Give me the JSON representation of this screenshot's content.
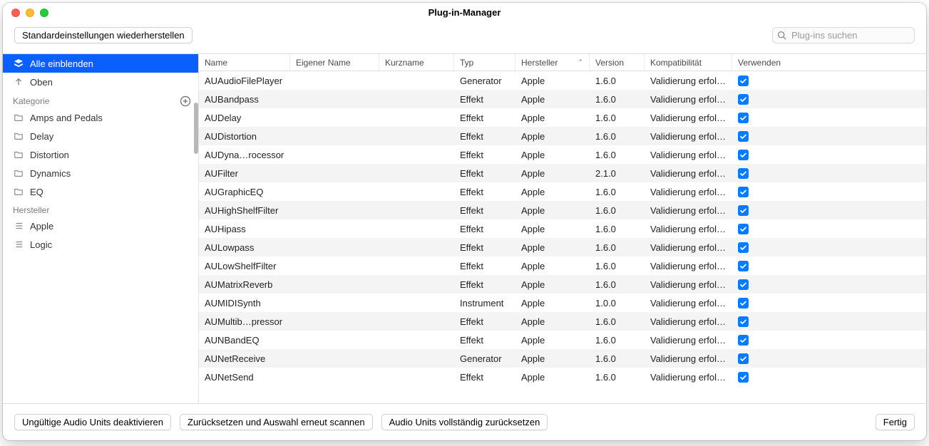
{
  "window": {
    "title": "Plug-in-Manager"
  },
  "toolbar": {
    "restore_defaults": "Standardeinstellungen wiederherstellen",
    "search_placeholder": "Plug-ins suchen"
  },
  "sidebar": {
    "show_all": "Alle einblenden",
    "up": "Oben",
    "category_header": "Kategorie",
    "categories": [
      {
        "label": "Amps and Pedals"
      },
      {
        "label": "Delay"
      },
      {
        "label": "Distortion"
      },
      {
        "label": "Dynamics"
      },
      {
        "label": "EQ"
      }
    ],
    "manufacturer_header": "Hersteller",
    "manufacturers": [
      {
        "label": "Apple"
      },
      {
        "label": "Logic"
      }
    ]
  },
  "table": {
    "columns": {
      "name": "Name",
      "own_name": "Eigener Name",
      "short_name": "Kurzname",
      "type": "Typ",
      "manufacturer": "Hersteller",
      "version": "Version",
      "compatibility": "Kompatibilität",
      "use": "Verwenden"
    },
    "rows": [
      {
        "name": "AUAudioFilePlayer",
        "own": "",
        "short": "",
        "type": "Generator",
        "mfr": "Apple",
        "ver": "1.6.0",
        "comp": "Validierung erfol…",
        "use": true
      },
      {
        "name": "AUBandpass",
        "own": "",
        "short": "",
        "type": "Effekt",
        "mfr": "Apple",
        "ver": "1.6.0",
        "comp": "Validierung erfol…",
        "use": true
      },
      {
        "name": "AUDelay",
        "own": "",
        "short": "",
        "type": "Effekt",
        "mfr": "Apple",
        "ver": "1.6.0",
        "comp": "Validierung erfol…",
        "use": true
      },
      {
        "name": "AUDistortion",
        "own": "",
        "short": "",
        "type": "Effekt",
        "mfr": "Apple",
        "ver": "1.6.0",
        "comp": "Validierung erfol…",
        "use": true
      },
      {
        "name": "AUDyna…rocessor",
        "own": "",
        "short": "",
        "type": "Effekt",
        "mfr": "Apple",
        "ver": "1.6.0",
        "comp": "Validierung erfol…",
        "use": true
      },
      {
        "name": "AUFilter",
        "own": "",
        "short": "",
        "type": "Effekt",
        "mfr": "Apple",
        "ver": "2.1.0",
        "comp": "Validierung erfol…",
        "use": true
      },
      {
        "name": "AUGraphicEQ",
        "own": "",
        "short": "",
        "type": "Effekt",
        "mfr": "Apple",
        "ver": "1.6.0",
        "comp": "Validierung erfol…",
        "use": true
      },
      {
        "name": "AUHighShelfFilter",
        "own": "",
        "short": "",
        "type": "Effekt",
        "mfr": "Apple",
        "ver": "1.6.0",
        "comp": "Validierung erfol…",
        "use": true
      },
      {
        "name": "AUHipass",
        "own": "",
        "short": "",
        "type": "Effekt",
        "mfr": "Apple",
        "ver": "1.6.0",
        "comp": "Validierung erfol…",
        "use": true
      },
      {
        "name": "AULowpass",
        "own": "",
        "short": "",
        "type": "Effekt",
        "mfr": "Apple",
        "ver": "1.6.0",
        "comp": "Validierung erfol…",
        "use": true
      },
      {
        "name": "AULowShelfFilter",
        "own": "",
        "short": "",
        "type": "Effekt",
        "mfr": "Apple",
        "ver": "1.6.0",
        "comp": "Validierung erfol…",
        "use": true
      },
      {
        "name": "AUMatrixReverb",
        "own": "",
        "short": "",
        "type": "Effekt",
        "mfr": "Apple",
        "ver": "1.6.0",
        "comp": "Validierung erfol…",
        "use": true
      },
      {
        "name": "AUMIDISynth",
        "own": "",
        "short": "",
        "type": "Instrument",
        "mfr": "Apple",
        "ver": "1.0.0",
        "comp": "Validierung erfol…",
        "use": true
      },
      {
        "name": "AUMultib…pressor",
        "own": "",
        "short": "",
        "type": "Effekt",
        "mfr": "Apple",
        "ver": "1.6.0",
        "comp": "Validierung erfol…",
        "use": true
      },
      {
        "name": "AUNBandEQ",
        "own": "",
        "short": "",
        "type": "Effekt",
        "mfr": "Apple",
        "ver": "1.6.0",
        "comp": "Validierung erfol…",
        "use": true
      },
      {
        "name": "AUNetReceive",
        "own": "",
        "short": "",
        "type": "Generator",
        "mfr": "Apple",
        "ver": "1.6.0",
        "comp": "Validierung erfol…",
        "use": true
      },
      {
        "name": "AUNetSend",
        "own": "",
        "short": "",
        "type": "Effekt",
        "mfr": "Apple",
        "ver": "1.6.0",
        "comp": "Validierung erfol…",
        "use": true
      }
    ]
  },
  "footer": {
    "deactivate_invalid": "Ungültige Audio Units deaktivieren",
    "reset_rescan": "Zurücksetzen und Auswahl erneut scannen",
    "full_reset": "Audio Units vollständig zurücksetzen",
    "done": "Fertig"
  },
  "style": {
    "selection_color": "#0a60ff",
    "checkbox_color": "#0a7bff",
    "alt_row_bg": "#f4f4f4"
  }
}
